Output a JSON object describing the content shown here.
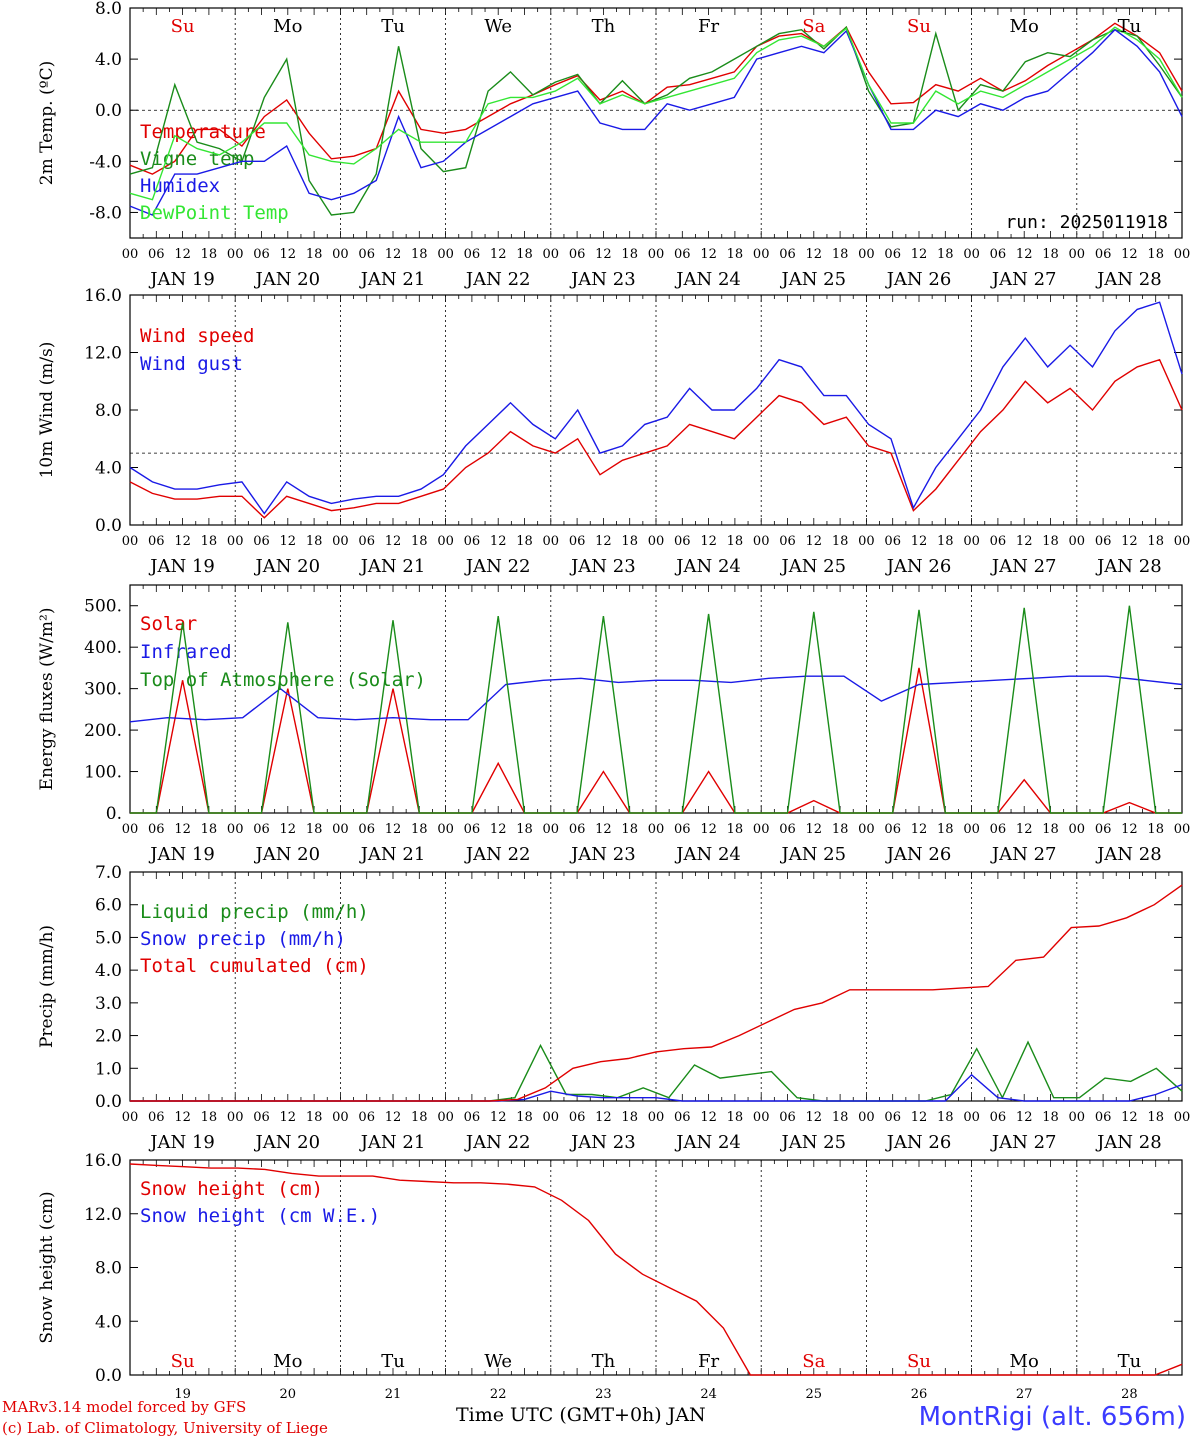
{
  "colors": {
    "red": "#e00000",
    "green": "#1a8c1a",
    "blue": "#1a1ae6",
    "lightgreen": "#33e633",
    "station": "#3b3bff"
  },
  "footer": {
    "credit_line1": "MARv3.14 model forced by GFS",
    "credit_line2": "(c) Lab. of Climatology, University of Liege",
    "xaxis_title": "Time UTC (GMT+0h)",
    "xaxis_month": "JAN",
    "station": "MontRigi (alt. 656m)"
  },
  "chart_data": [
    {
      "type": "line",
      "ylabel": "2m Temp. (ºC)",
      "ylim": [
        -10,
        8
      ],
      "yticks": [
        "8.0",
        "4.0",
        "0.0",
        "-4.0",
        "-8.0"
      ],
      "ytick_values": [
        8,
        4,
        0,
        -4,
        -8
      ],
      "ref_line": 0,
      "run_label": "run: 2025011918",
      "weekday_labels": [
        "Su",
        "Mo",
        "Tu",
        "We",
        "Th",
        "Fr",
        "Sa",
        "Su",
        "Mo",
        "Tu"
      ],
      "weekend_flags": [
        true,
        false,
        false,
        false,
        false,
        false,
        true,
        true,
        false,
        false
      ],
      "hour_ticks": [
        "00",
        "06",
        "12",
        "18"
      ],
      "day_labels": [
        "JAN 19",
        "JAN 20",
        "JAN 21",
        "JAN 22",
        "JAN 23",
        "JAN 24",
        "JAN 25",
        "JAN 26",
        "JAN 27",
        "JAN 28"
      ],
      "last_hour": "00",
      "x_hours_step": 6,
      "series": [
        {
          "name": "Temperature",
          "color": "#e00000",
          "values": [
            -4.3,
            -5.0,
            -4.0,
            -1.5,
            -1.5,
            -2.8,
            -0.5,
            0.8,
            -1.8,
            -3.8,
            -3.6,
            -3.0,
            1.5,
            -1.5,
            -1.8,
            -1.5,
            -0.5,
            0.5,
            1.2,
            2.0,
            2.7,
            0.8,
            1.5,
            0.5,
            1.8,
            2.0,
            2.5,
            3.0,
            5.0,
            5.8,
            6.0,
            5.0,
            6.5,
            3.0,
            0.5,
            0.6,
            2.0,
            1.5,
            2.5,
            1.5,
            2.3,
            3.5,
            4.5,
            5.5,
            6.8,
            5.8,
            4.5,
            1.5
          ]
        },
        {
          "name": "Vigne temp",
          "color": "#1a8c1a",
          "values": [
            -5.0,
            -4.5,
            2.0,
            -2.5,
            -3.0,
            -4.0,
            1.0,
            4.0,
            -5.5,
            -8.2,
            -8.0,
            -5.0,
            5.0,
            -3.0,
            -4.8,
            -4.5,
            1.5,
            3.0,
            1.2,
            2.2,
            2.8,
            0.5,
            2.3,
            0.5,
            1.2,
            2.5,
            3.0,
            4.0,
            5.0,
            6.0,
            6.3,
            4.8,
            6.5,
            1.5,
            -1.3,
            -1.0,
            6.0,
            0.0,
            2.0,
            1.5,
            3.8,
            4.5,
            4.2,
            5.5,
            6.3,
            5.8,
            3.5,
            1.0
          ]
        },
        {
          "name": "Humidex",
          "color": "#1a1ae6",
          "values": [
            -7.5,
            -8.2,
            -5.0,
            -5.0,
            -4.5,
            -4.0,
            -4.0,
            -2.8,
            -6.5,
            -7.0,
            -6.5,
            -5.5,
            -0.5,
            -4.5,
            -4.0,
            -2.5,
            -1.5,
            -0.5,
            0.5,
            1.0,
            1.5,
            -1.0,
            -1.5,
            -1.5,
            0.5,
            0.0,
            0.5,
            1.0,
            4.0,
            4.5,
            5.0,
            4.5,
            6.2,
            2.0,
            -1.5,
            -1.5,
            0.0,
            -0.5,
            0.5,
            0.0,
            1.0,
            1.5,
            3.0,
            4.5,
            6.3,
            5.0,
            3.0,
            -0.5
          ]
        },
        {
          "name": "DewPoint Temp",
          "color": "#33e633",
          "values": [
            -6.5,
            -7.0,
            -2.0,
            -3.0,
            -3.5,
            -2.5,
            -1.0,
            -1.0,
            -3.5,
            -4.0,
            -4.2,
            -3.0,
            -1.5,
            -2.5,
            -2.5,
            -2.5,
            0.5,
            1.0,
            1.0,
            1.5,
            2.5,
            0.5,
            1.2,
            0.5,
            1.0,
            1.5,
            2.0,
            2.5,
            4.5,
            5.5,
            5.8,
            5.0,
            6.4,
            2.0,
            -1.0,
            -1.0,
            1.5,
            0.5,
            1.5,
            1.0,
            2.0,
            3.0,
            4.0,
            5.0,
            6.5,
            5.5,
            4.0,
            1.0
          ]
        }
      ]
    },
    {
      "type": "line",
      "ylabel": "10m Wind (m/s)",
      "ylim": [
        0,
        16
      ],
      "yticks": [
        "16.0",
        "12.0",
        "8.0",
        "4.0",
        "0.0"
      ],
      "ytick_values": [
        16,
        12,
        8,
        4,
        0
      ],
      "ref_line": 5,
      "hour_ticks": [
        "00",
        "06",
        "12",
        "18"
      ],
      "day_labels": [
        "JAN 19",
        "JAN 20",
        "JAN 21",
        "JAN 22",
        "JAN 23",
        "JAN 24",
        "JAN 25",
        "JAN 26",
        "JAN 27",
        "JAN 28"
      ],
      "last_hour": "00",
      "x_hours_step": 6,
      "series": [
        {
          "name": "Wind speed",
          "color": "#e00000",
          "values": [
            3.0,
            2.2,
            1.8,
            1.8,
            2.0,
            2.0,
            0.5,
            2.0,
            1.5,
            1.0,
            1.2,
            1.5,
            1.5,
            2.0,
            2.5,
            4.0,
            5.0,
            6.5,
            5.5,
            5.0,
            6.0,
            3.5,
            4.5,
            5.0,
            5.5,
            7.0,
            6.5,
            6.0,
            7.5,
            9.0,
            8.5,
            7.0,
            7.5,
            5.5,
            5.0,
            1.0,
            2.5,
            4.5,
            6.5,
            8.0,
            10.0,
            8.5,
            9.5,
            8.0,
            10.0,
            11.0,
            11.5,
            8.0
          ]
        },
        {
          "name": "Wind gust",
          "color": "#1a1ae6",
          "values": [
            4.0,
            3.0,
            2.5,
            2.5,
            2.8,
            3.0,
            0.8,
            3.0,
            2.0,
            1.5,
            1.8,
            2.0,
            2.0,
            2.5,
            3.5,
            5.5,
            7.0,
            8.5,
            7.0,
            6.0,
            8.0,
            5.0,
            5.5,
            7.0,
            7.5,
            9.5,
            8.0,
            8.0,
            9.5,
            11.5,
            11.0,
            9.0,
            9.0,
            7.0,
            6.0,
            1.2,
            4.0,
            6.0,
            8.0,
            11.0,
            13.0,
            11.0,
            12.5,
            11.0,
            13.5,
            15.0,
            15.5,
            10.5
          ]
        }
      ]
    },
    {
      "type": "line",
      "ylabel": "Energy fluxes (W/m²)",
      "ylim": [
        0,
        550
      ],
      "yticks": [
        "500.",
        "400.",
        "300.",
        "200.",
        "100.",
        "0."
      ],
      "ytick_values": [
        500,
        400,
        300,
        200,
        100,
        0
      ],
      "hour_ticks": [
        "00",
        "06",
        "12",
        "18"
      ],
      "day_labels": [
        "JAN 19",
        "JAN 20",
        "JAN 21",
        "JAN 22",
        "JAN 23",
        "JAN 24",
        "JAN 25",
        "JAN 26",
        "JAN 27",
        "JAN 28"
      ],
      "last_hour": "00",
      "x_hours_step": 6,
      "series": [
        {
          "name": "Solar",
          "color": "#e00000",
          "values": [
            0,
            0,
            320,
            0,
            0,
            0,
            300,
            0,
            0,
            0,
            300,
            0,
            0,
            0,
            120,
            0,
            0,
            0,
            100,
            0,
            0,
            0,
            100,
            0,
            0,
            0,
            30,
            0,
            0,
            0,
            350,
            0,
            0,
            0,
            80,
            0,
            0,
            0,
            25,
            0,
            0
          ]
        },
        {
          "name": "Infrared",
          "color": "#1a1ae6",
          "values": [
            220,
            230,
            225,
            230,
            300,
            230,
            225,
            230,
            225,
            225,
            310,
            320,
            325,
            315,
            320,
            320,
            315,
            325,
            330,
            330,
            270,
            310,
            315,
            320,
            325,
            330,
            330,
            320,
            310
          ]
        },
        {
          "name": "Top of Atmosphere (Solar)",
          "color": "#1a8c1a",
          "values": [
            0,
            0,
            460,
            0,
            0,
            0,
            460,
            0,
            0,
            0,
            465,
            0,
            0,
            0,
            475,
            0,
            0,
            0,
            475,
            0,
            0,
            0,
            480,
            0,
            0,
            0,
            485,
            0,
            0,
            0,
            490,
            0,
            0,
            0,
            495,
            0,
            0,
            0,
            500,
            0,
            0
          ]
        }
      ]
    },
    {
      "type": "line",
      "ylabel": "Precip (mm/h)",
      "ylim": [
        0,
        7
      ],
      "yticks": [
        "7.0",
        "6.0",
        "5.0",
        "4.0",
        "3.0",
        "2.0",
        "1.0",
        "0.0"
      ],
      "ytick_values": [
        7,
        6,
        5,
        4,
        3,
        2,
        1,
        0
      ],
      "hour_ticks": [
        "00",
        "06",
        "12",
        "18"
      ],
      "day_labels": [
        "JAN 19",
        "JAN 20",
        "JAN 21",
        "JAN 22",
        "JAN 23",
        "JAN 24",
        "JAN 25",
        "JAN 26",
        "JAN 27",
        "JAN 28"
      ],
      "last_hour": "00",
      "x_hours_step": 6,
      "series": [
        {
          "name": "Liquid precip (mm/h)",
          "color": "#1a8c1a",
          "values": [
            0,
            0,
            0,
            0,
            0,
            0,
            0,
            0,
            0,
            0,
            0,
            0,
            0,
            0,
            0,
            0.1,
            1.7,
            0.2,
            0.2,
            0.1,
            0.4,
            0.1,
            1.1,
            0.7,
            0.8,
            0.9,
            0.1,
            0,
            0,
            0,
            0,
            0,
            0.2,
            1.6,
            0.1,
            1.8,
            0.1,
            0.1,
            0.7,
            0.6,
            1.0,
            0.3
          ]
        },
        {
          "name": "Snow precip (mm/h)",
          "color": "#1a1ae6",
          "values": [
            0,
            0,
            0,
            0,
            0,
            0,
            0,
            0,
            0,
            0,
            0,
            0,
            0,
            0,
            0,
            0.05,
            0.3,
            0.15,
            0.1,
            0.1,
            0.1,
            0,
            0,
            0,
            0,
            0,
            0,
            0,
            0,
            0,
            0,
            0,
            0.8,
            0.1,
            0,
            0,
            0,
            0,
            0,
            0.2,
            0.5
          ]
        },
        {
          "name": "Total cumulated (cm)",
          "color": "#e00000",
          "values": [
            0,
            0,
            0,
            0,
            0,
            0,
            0,
            0,
            0,
            0,
            0,
            0,
            0,
            0,
            0.05,
            0.4,
            1.0,
            1.2,
            1.3,
            1.5,
            1.6,
            1.65,
            2.0,
            2.4,
            2.8,
            3.0,
            3.4,
            3.4,
            3.4,
            3.4,
            3.45,
            3.5,
            4.3,
            4.4,
            5.3,
            5.35,
            5.6,
            6.0,
            6.6
          ]
        }
      ]
    },
    {
      "type": "line",
      "ylabel": "Snow height (cm)",
      "ylim": [
        0,
        16
      ],
      "yticks": [
        "16.0",
        "12.0",
        "8.0",
        "4.0",
        "0.0"
      ],
      "ytick_values": [
        16,
        12,
        8,
        4,
        0
      ],
      "weekday_labels": [
        "Su",
        "Mo",
        "Tu",
        "We",
        "Th",
        "Fr",
        "Sa",
        "Su",
        "Mo",
        "Tu"
      ],
      "weekend_flags": [
        true,
        false,
        false,
        false,
        false,
        false,
        true,
        true,
        false,
        false
      ],
      "day_numbers": [
        "19",
        "20",
        "21",
        "22",
        "23",
        "24",
        "25",
        "26",
        "27",
        "28"
      ],
      "x_hours_step": 6,
      "series": [
        {
          "name": "Snow height (cm)",
          "color": "#e00000",
          "values": [
            15.7,
            15.6,
            15.5,
            15.4,
            15.4,
            15.3,
            15.0,
            14.8,
            14.8,
            14.8,
            14.5,
            14.4,
            14.3,
            14.3,
            14.2,
            14.0,
            13.0,
            11.5,
            9.0,
            7.5,
            6.5,
            5.5,
            3.5,
            0,
            0,
            0,
            0,
            0,
            0,
            0,
            0,
            0,
            0,
            0,
            0,
            0,
            0,
            0,
            0,
            0.8
          ]
        },
        {
          "name": "Snow height (cm W.E.)",
          "color": "#1a1ae6",
          "values": []
        }
      ]
    }
  ]
}
